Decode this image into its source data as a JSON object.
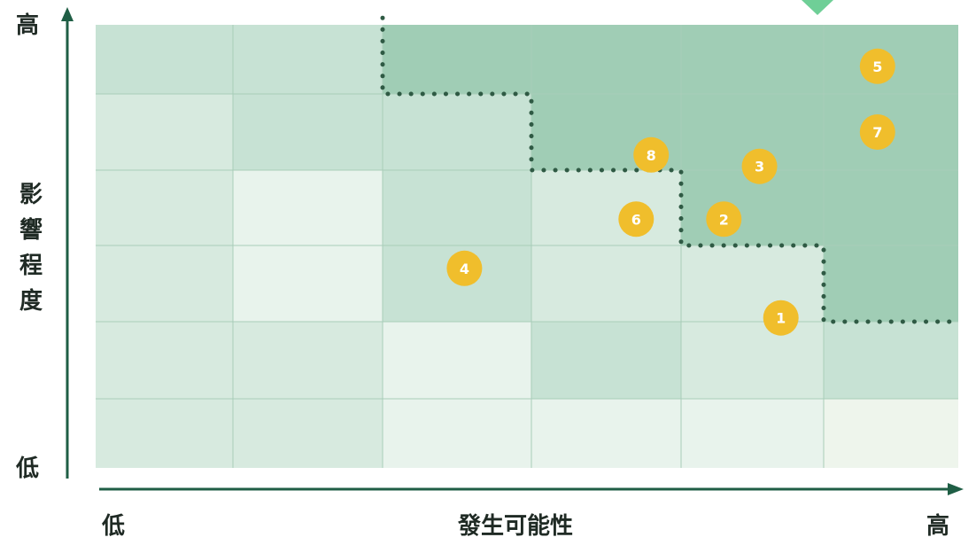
{
  "axes": {
    "y_high": "高",
    "y_low": "低",
    "y_title": "影響程度",
    "x_low": "低",
    "x_title": "發生可能性",
    "x_high": "高"
  },
  "grid": {
    "columns": 6,
    "rows": 6,
    "cell_levels": [
      [
        2,
        2,
        4,
        4,
        4,
        4
      ],
      [
        1,
        2,
        2,
        4,
        4,
        4
      ],
      [
        1,
        0,
        2,
        1,
        4,
        4
      ],
      [
        1,
        0,
        2,
        1,
        1,
        4
      ],
      [
        1,
        1,
        0,
        2,
        1,
        2
      ],
      [
        1,
        1,
        0,
        0,
        0,
        0
      ]
    ],
    "level_colors": [
      "#e8f3ec",
      "#d7eadf",
      "#c7e2d4",
      "#b5d9c6",
      "#a0cdb5"
    ],
    "last_row_right_color": "#eef5ec",
    "line_color": "#a9cdb9"
  },
  "markers": {
    "color": "#f0be2c",
    "text_color": "#ffffff",
    "items": [
      {
        "label": "1",
        "col": 4.7,
        "row": 3.95
      },
      {
        "label": "2",
        "col": 4.3,
        "row": 2.65
      },
      {
        "label": "3",
        "col": 4.55,
        "row": 1.95
      },
      {
        "label": "4",
        "col": 2.55,
        "row": 3.3
      },
      {
        "label": "5",
        "col": 5.4,
        "row": 0.6
      },
      {
        "label": "6",
        "col": 3.7,
        "row": 2.65
      },
      {
        "label": "7",
        "col": 5.4,
        "row": 1.5
      },
      {
        "label": "8",
        "col": 3.8,
        "row": 1.8
      }
    ]
  },
  "dotted_boundary": {
    "color": "#2f5a44",
    "points_grid": [
      [
        2,
        -0.1
      ],
      [
        2,
        1
      ],
      [
        3,
        1
      ],
      [
        3,
        2
      ],
      [
        4,
        2
      ],
      [
        4,
        3
      ],
      [
        5,
        3
      ],
      [
        5,
        4
      ],
      [
        6,
        4
      ]
    ]
  },
  "colors": {
    "axis": "#1f5e45",
    "top_marker": "#6fcf97"
  }
}
